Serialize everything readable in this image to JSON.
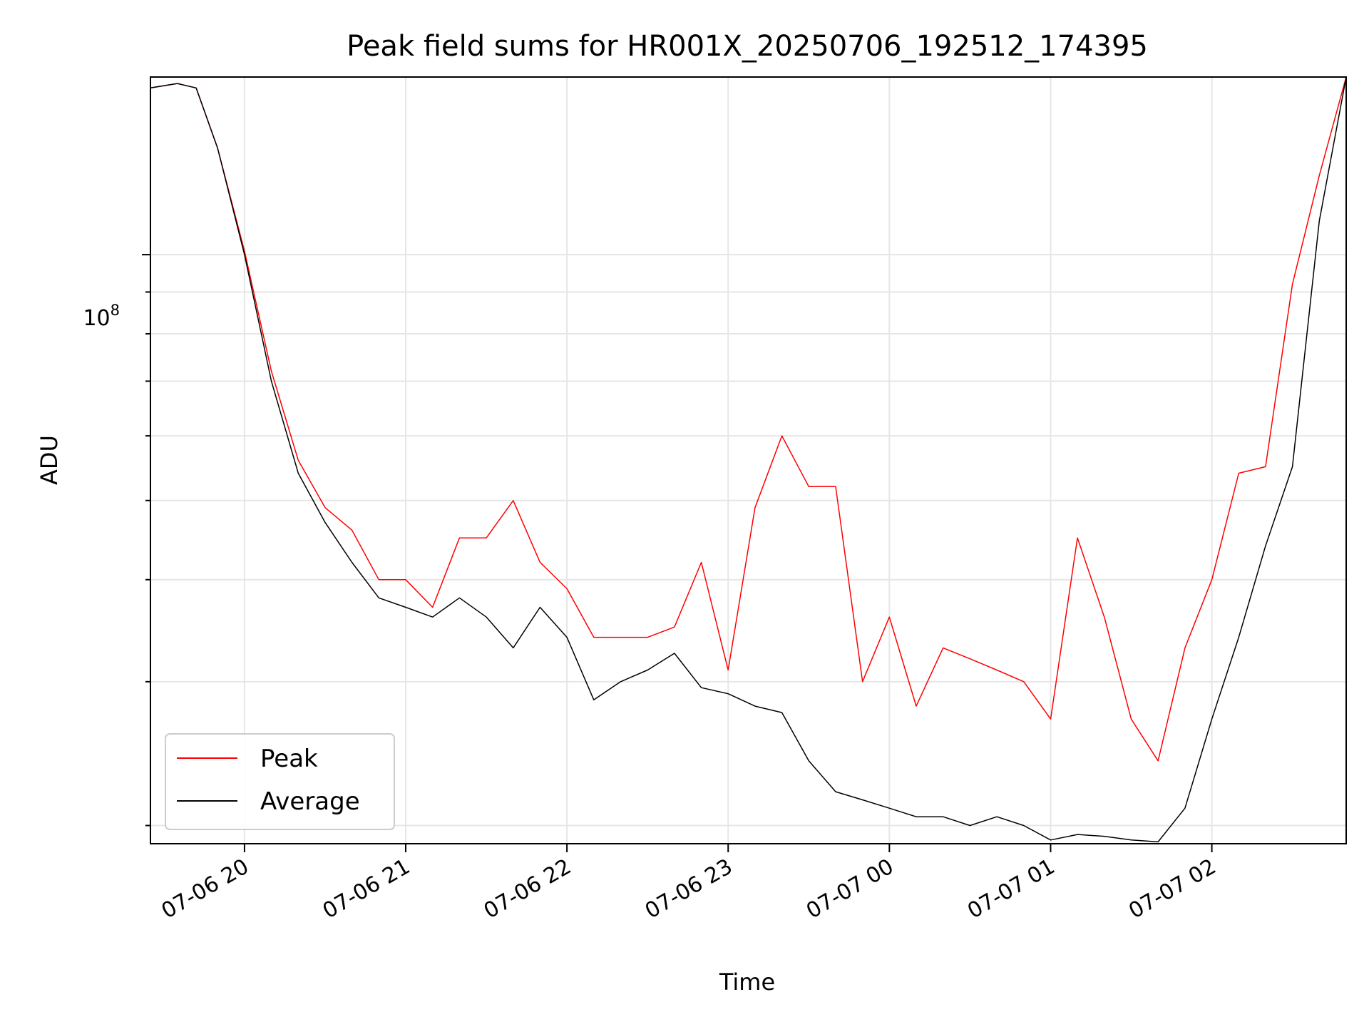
{
  "chart_data": {
    "type": "line",
    "title": "Peak field sums for HR001X_20250706_192512_174395",
    "xlabel": "Time",
    "ylabel": "ADU",
    "yscale": "log",
    "ylim": [
      19000000,
      165000000
    ],
    "xlim": [
      "2025-07-06 19:25",
      "2025-07-07 02:50"
    ],
    "x_ticks": [
      "07-06 20",
      "07-06 21",
      "07-06 22",
      "07-06 23",
      "07-07 00",
      "07-07 01",
      "07-07 02"
    ],
    "x_tick_times": [
      "2025-07-06 20:00",
      "2025-07-06 21:00",
      "2025-07-06 22:00",
      "2025-07-06 23:00",
      "2025-07-07 00:00",
      "2025-07-07 01:00",
      "2025-07-07 02:00"
    ],
    "y_tick_label": "10^8",
    "grid": true,
    "legend_position": "lower-left",
    "colors": {
      "peak": "#ff0000",
      "average": "#000000"
    },
    "series": [
      {
        "name": "Peak",
        "color": "#ff0000",
        "x": [
          "2025-07-06 19:25",
          "2025-07-06 19:35",
          "2025-07-06 19:42",
          "2025-07-06 19:50",
          "2025-07-06 20:00",
          "2025-07-06 20:10",
          "2025-07-06 20:20",
          "2025-07-06 20:30",
          "2025-07-06 20:40",
          "2025-07-06 20:50",
          "2025-07-06 21:00",
          "2025-07-06 21:10",
          "2025-07-06 21:20",
          "2025-07-06 21:30",
          "2025-07-06 21:40",
          "2025-07-06 21:50",
          "2025-07-06 22:00",
          "2025-07-06 22:10",
          "2025-07-06 22:20",
          "2025-07-06 22:30",
          "2025-07-06 22:40",
          "2025-07-06 22:50",
          "2025-07-06 23:00",
          "2025-07-06 23:10",
          "2025-07-06 23:20",
          "2025-07-06 23:30",
          "2025-07-06 23:40",
          "2025-07-06 23:50",
          "2025-07-07 00:00",
          "2025-07-07 00:10",
          "2025-07-07 00:20",
          "2025-07-07 00:30",
          "2025-07-07 00:40",
          "2025-07-07 00:50",
          "2025-07-07 01:00",
          "2025-07-07 01:10",
          "2025-07-07 01:20",
          "2025-07-07 01:30",
          "2025-07-07 01:40",
          "2025-07-07 01:50",
          "2025-07-07 02:00",
          "2025-07-07 02:10",
          "2025-07-07 02:20",
          "2025-07-07 02:30",
          "2025-07-07 02:40",
          "2025-07-07 02:50"
        ],
        "values": [
          160000000,
          162000000,
          160000000,
          135000000,
          101000000,
          72000000,
          56000000,
          49000000,
          46000000,
          40000000,
          40000000,
          37000000,
          45000000,
          45000000,
          50000000,
          42000000,
          39000000,
          34000000,
          34000000,
          34000000,
          35000000,
          42000000,
          31000000,
          49000000,
          60000000,
          52000000,
          52000000,
          30000000,
          36000000,
          28000000,
          33000000,
          32000000,
          31000000,
          30000000,
          27000000,
          45000000,
          36000000,
          27000000,
          24000000,
          33000000,
          40000000,
          54000000,
          55000000,
          92000000,
          125000000,
          165000000
        ]
      },
      {
        "name": "Average",
        "color": "#000000",
        "x": [
          "2025-07-06 19:25",
          "2025-07-06 19:35",
          "2025-07-06 19:42",
          "2025-07-06 19:50",
          "2025-07-06 20:00",
          "2025-07-06 20:10",
          "2025-07-06 20:20",
          "2025-07-06 20:30",
          "2025-07-06 20:40",
          "2025-07-06 20:50",
          "2025-07-06 21:00",
          "2025-07-06 21:10",
          "2025-07-06 21:20",
          "2025-07-06 21:30",
          "2025-07-06 21:40",
          "2025-07-06 21:50",
          "2025-07-06 22:00",
          "2025-07-06 22:10",
          "2025-07-06 22:20",
          "2025-07-06 22:30",
          "2025-07-06 22:40",
          "2025-07-06 22:50",
          "2025-07-06 23:00",
          "2025-07-06 23:10",
          "2025-07-06 23:20",
          "2025-07-06 23:30",
          "2025-07-06 23:40",
          "2025-07-06 23:50",
          "2025-07-07 00:00",
          "2025-07-07 00:10",
          "2025-07-07 00:20",
          "2025-07-07 00:30",
          "2025-07-07 00:40",
          "2025-07-07 00:50",
          "2025-07-07 01:00",
          "2025-07-07 01:10",
          "2025-07-07 01:20",
          "2025-07-07 01:30",
          "2025-07-07 01:40",
          "2025-07-07 01:50",
          "2025-07-07 02:00",
          "2025-07-07 02:10",
          "2025-07-07 02:20",
          "2025-07-07 02:30",
          "2025-07-07 02:40",
          "2025-07-07 02:50"
        ],
        "values": [
          160000000,
          162000000,
          160000000,
          135000000,
          100000000,
          70000000,
          54000000,
          47000000,
          42000000,
          38000000,
          37000000,
          36000000,
          38000000,
          36000000,
          33000000,
          37000000,
          34000000,
          28500000,
          30000000,
          31000000,
          32500000,
          29500000,
          29000000,
          28000000,
          27500000,
          24000000,
          22000000,
          21500000,
          21000000,
          20500000,
          20500000,
          20000000,
          20500000,
          20000000,
          19200000,
          19500000,
          19400000,
          19200000,
          19100000,
          21000000,
          27000000,
          34000000,
          44000000,
          55000000,
          110000000,
          165000000
        ]
      }
    ],
    "legend": [
      {
        "label": "Peak",
        "color": "#ff0000"
      },
      {
        "label": "Average",
        "color": "#000000"
      }
    ]
  }
}
